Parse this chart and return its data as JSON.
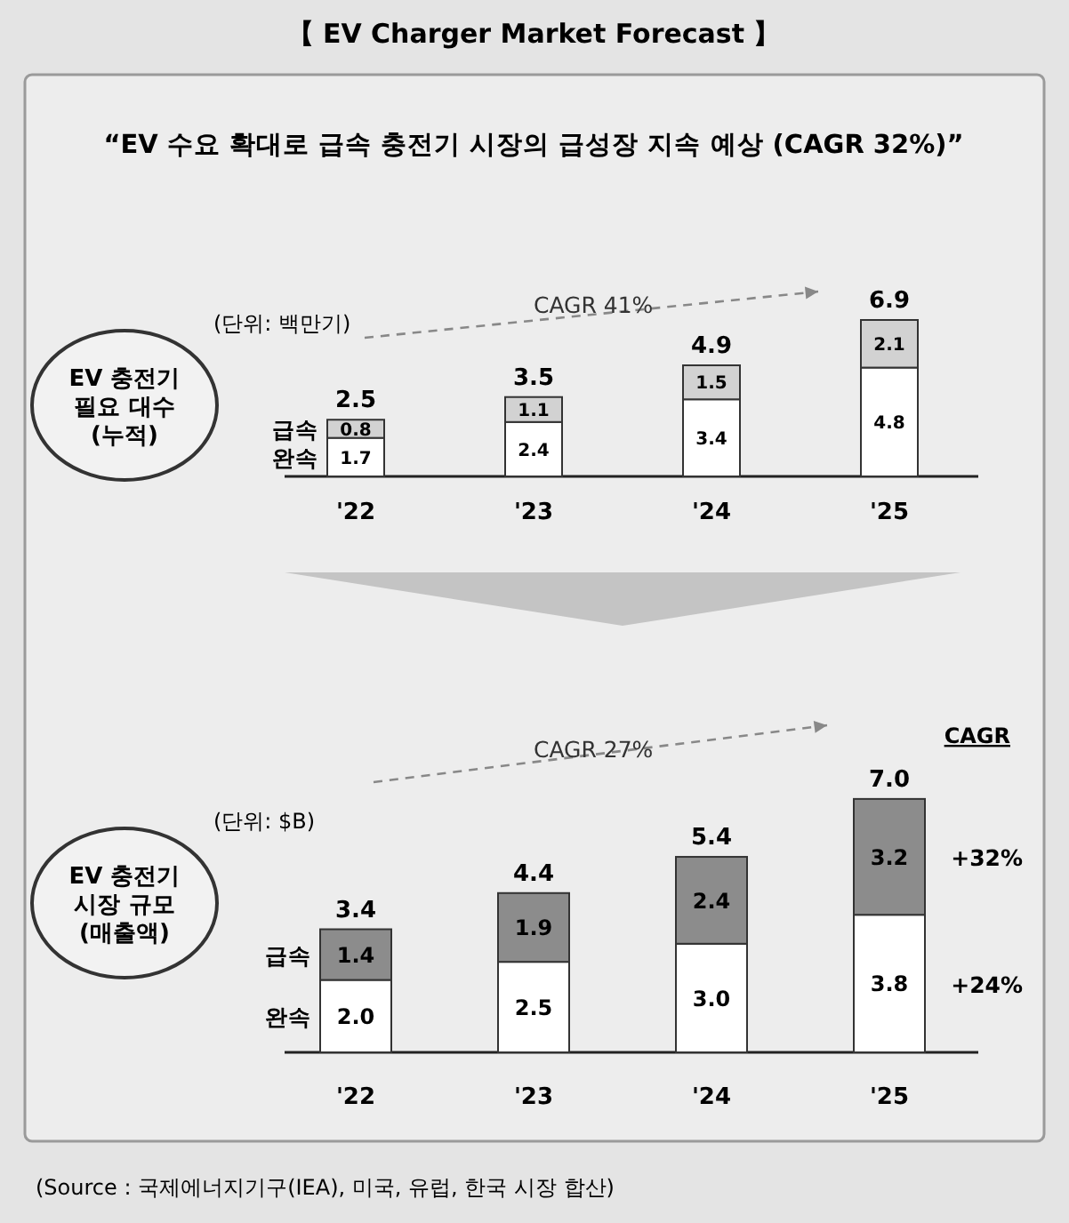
{
  "chart_data": [
    {
      "type": "bar",
      "stacked": true,
      "title": "【 EV Charger Market Forecast 】",
      "subtitle": "“EV 수요 확대로 급속 충전기 시장의 급성장 지속 예상 (CAGR 32%)”",
      "ylabel": "EV 충전기\n필요 대수\n(누적)",
      "categories": [
        "'22",
        "'23",
        "'24",
        "'25"
      ],
      "series": [
        {
          "name": "완속",
          "color": "#ffffff",
          "values": [
            1.7,
            2.4,
            3.4,
            4.8
          ],
          "value_labels": [
            "1.7",
            "2.4",
            "3.4",
            "4.8"
          ]
        },
        {
          "name": "급속",
          "color": "#d2d2d2",
          "values": [
            0.8,
            1.1,
            1.5,
            2.1
          ],
          "value_labels": [
            "0.8",
            "1.1",
            "1.5",
            "2.1"
          ]
        }
      ],
      "totals": [
        "2.5",
        "3.5",
        "4.9",
        "6.9"
      ],
      "annotations": [
        "(단위: 백만기)",
        "CAGR 41%"
      ]
    },
    {
      "type": "bar",
      "stacked": true,
      "ylabel": "EV 충전기\n시장 규모\n(매출액)",
      "categories": [
        "'22",
        "'23",
        "'24",
        "'25"
      ],
      "series": [
        {
          "name": "완속",
          "color": "#ffffff",
          "values": [
            2.0,
            2.5,
            3.0,
            3.8
          ],
          "value_labels": [
            "2.0",
            "2.5",
            "3.0",
            "3.8"
          ]
        },
        {
          "name": "급속",
          "color": "#8c8c8c",
          "values": [
            1.4,
            1.9,
            2.4,
            3.2
          ],
          "value_labels": [
            "1.4",
            "1.9",
            "2.4",
            "3.2"
          ]
        }
      ],
      "totals": [
        "3.4",
        "4.4",
        "5.4",
        "7.0"
      ],
      "annotations": [
        "(단위: $B)",
        "CAGR 27%",
        "CAGR",
        "+32%",
        "+24%",
        "(Source : 국제에너지기구(IEA), 미국, 유럽, 한국 시장 합산)"
      ]
    }
  ]
}
